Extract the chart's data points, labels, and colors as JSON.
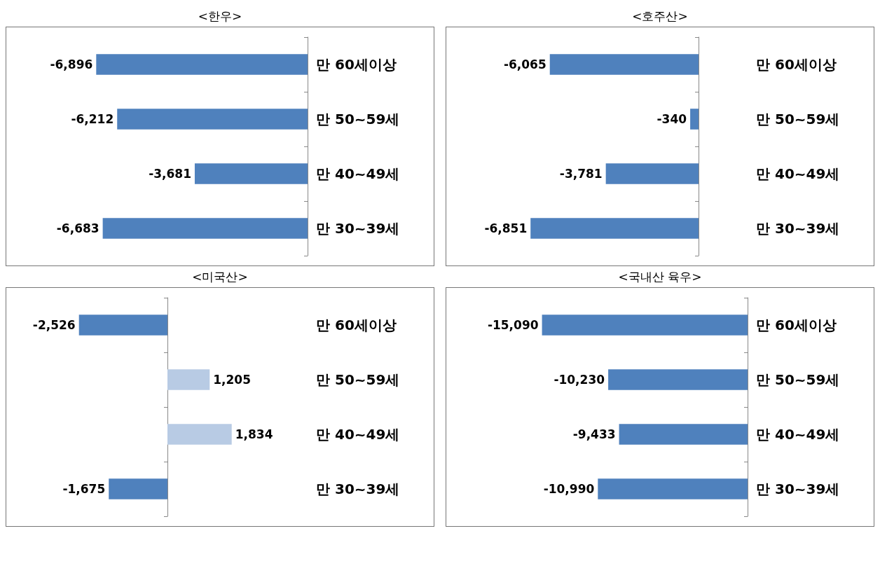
{
  "chart_data": [
    {
      "type": "bar",
      "orientation": "horizontal",
      "title": "<한우>",
      "categories": [
        "만 60세이상",
        "만 50~59세",
        "만 40~49세",
        "만 30~39세"
      ],
      "values": [
        -6896,
        -6212,
        -3681,
        -6683
      ],
      "value_labels": [
        "-6,896",
        "-6,212",
        "-3,681",
        "-6,683"
      ],
      "color": "#4f81bd"
    },
    {
      "type": "bar",
      "orientation": "horizontal",
      "title": "<호주산>",
      "categories": [
        "만 60세이상",
        "만 50~59세",
        "만 40~49세",
        "만 30~39세"
      ],
      "values": [
        -6065,
        -340,
        -3781,
        -6851
      ],
      "value_labels": [
        "-6,065",
        "-340",
        "-3,781",
        "-6,851"
      ],
      "color": "#4f81bd"
    },
    {
      "type": "bar",
      "orientation": "horizontal",
      "title": "<미국산>",
      "categories": [
        "만 60세이상",
        "만 50~59세",
        "만 40~49세",
        "만 30~39세"
      ],
      "values": [
        -2526,
        1205,
        1834,
        -1675
      ],
      "value_labels": [
        "-2,526",
        "1,205",
        "1,834",
        "-1,675"
      ],
      "colors": [
        "#4f81bd",
        "#b8cbe4",
        "#b8cbe4",
        "#4f81bd"
      ]
    },
    {
      "type": "bar",
      "orientation": "horizontal",
      "title": "<국내산 육우>",
      "categories": [
        "만 60세이상",
        "만 50~59세",
        "만 40~49세",
        "만 30~39세"
      ],
      "values": [
        -15090,
        -10230,
        -9433,
        -10990
      ],
      "value_labels": [
        "-15,090",
        "-10,230",
        "-9,433",
        "-10,990"
      ],
      "color": "#4f81bd"
    }
  ]
}
